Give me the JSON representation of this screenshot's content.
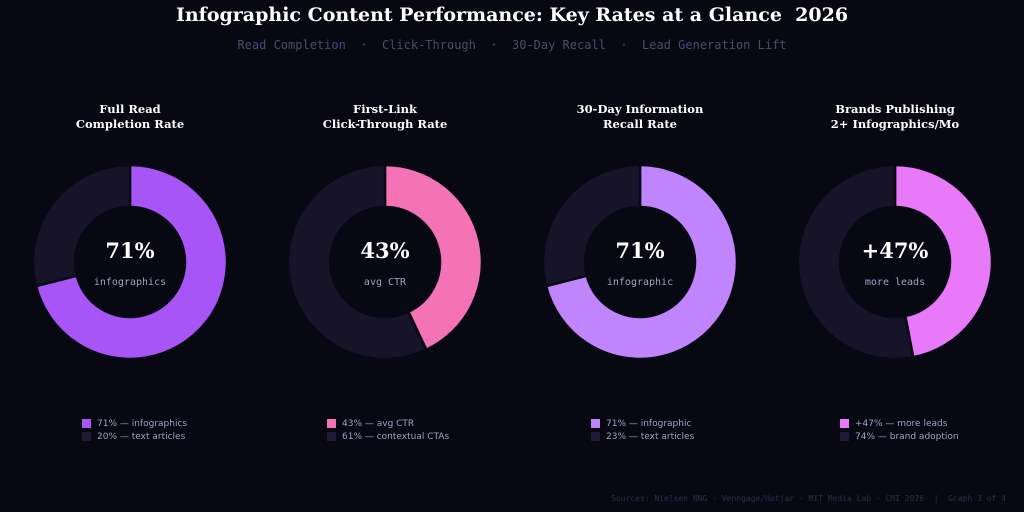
{
  "header": {
    "title": "Infographic Content Performance: Key Rates at a Glance  2026",
    "subtitle": "Read Completion  ·  Click-Through  ·  30-Day Recall  ·  Lead Generation Lift"
  },
  "footer": {
    "text": "Sources: Nielsen NNG · Venngage/Hotjar · MIT Media Lab · CMI 2026  |  Graph 3 of 4"
  },
  "colors": {
    "background": "#080812",
    "track": "#17142a",
    "hole": "#080812"
  },
  "chart_data": [
    {
      "type": "pie",
      "title_lines": [
        "Full Read",
        "Completion Rate"
      ],
      "center_value": "71%",
      "center_label": "infographics",
      "slices": [
        {
          "name": "infographics",
          "value": 71,
          "color": "#a855f7"
        },
        {
          "name": "remainder",
          "value": 29,
          "color": "#17142a"
        }
      ],
      "legend": [
        {
          "label": "71% — infographics",
          "color": "#a855f7"
        },
        {
          "label": "20% — text articles",
          "color": "#1f1b35"
        }
      ]
    },
    {
      "type": "pie",
      "title_lines": [
        "First-Link",
        "Click-Through Rate"
      ],
      "center_value": "43%",
      "center_label": "avg CTR",
      "slices": [
        {
          "name": "avg CTR",
          "value": 43,
          "color": "#f472b6"
        },
        {
          "name": "remainder",
          "value": 57,
          "color": "#17142a"
        }
      ],
      "legend": [
        {
          "label": "43% — avg CTR",
          "color": "#f472b6"
        },
        {
          "label": "61% — contextual CTAs",
          "color": "#1f1b35"
        }
      ]
    },
    {
      "type": "pie",
      "title_lines": [
        "30-Day Information",
        "Recall Rate"
      ],
      "center_value": "71%",
      "center_label": "infographic",
      "slices": [
        {
          "name": "infographic",
          "value": 71,
          "color": "#c084fc"
        },
        {
          "name": "remainder",
          "value": 29,
          "color": "#17142a"
        }
      ],
      "legend": [
        {
          "label": "71% — infographic",
          "color": "#c084fc"
        },
        {
          "label": "23% — text articles",
          "color": "#1f1b35"
        }
      ]
    },
    {
      "type": "pie",
      "title_lines": [
        "Brands Publishing",
        "2+ Infographics/Mo"
      ],
      "center_value": "+47%",
      "center_label": "more leads",
      "slices": [
        {
          "name": "more leads",
          "value": 47,
          "color": "#e879f9"
        },
        {
          "name": "remainder",
          "value": 53,
          "color": "#17142a"
        }
      ],
      "legend": [
        {
          "label": "+47% — more leads",
          "color": "#e879f9"
        },
        {
          "label": "74% — brand adoption",
          "color": "#1f1b35"
        }
      ]
    }
  ]
}
